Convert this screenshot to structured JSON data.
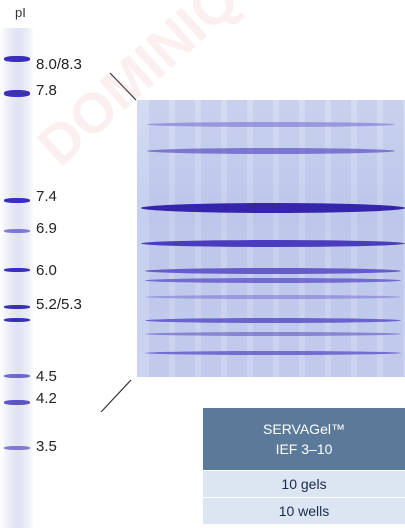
{
  "axis": {
    "pi_label": "pI"
  },
  "ph_markers": [
    "8.0/8.3",
    "7.8",
    "7.4",
    "6.9",
    "6.0",
    "5.2/5.3",
    "4.5",
    "4.2",
    "3.5"
  ],
  "product": {
    "name": "SERVAGel™",
    "subtitle": "IEF 3–10",
    "gels": "10 gels",
    "wells": "10 wells"
  },
  "watermark": "DOMINIQUE"
}
